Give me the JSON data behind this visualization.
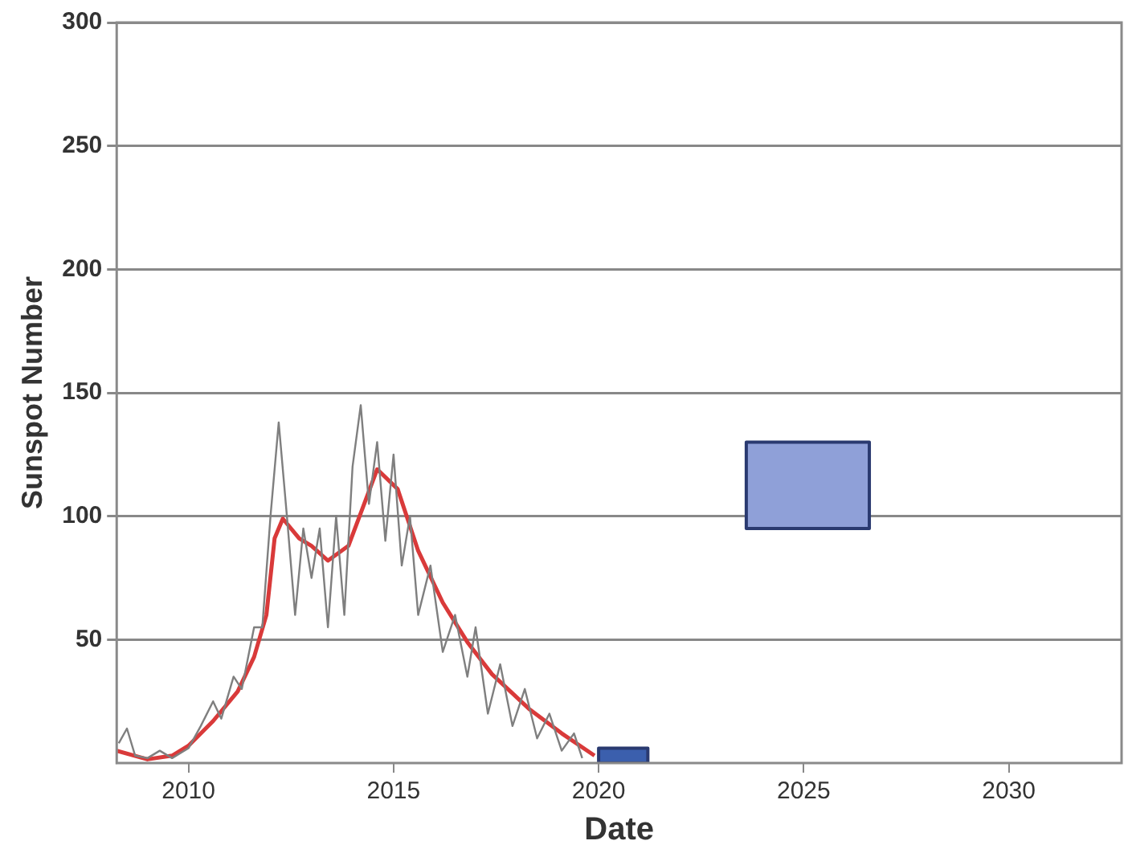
{
  "chart_data": {
    "type": "line",
    "xlabel": "Date",
    "ylabel": "Sunspot Number",
    "xlim": [
      2008.25,
      2032.75
    ],
    "xticks": [
      2010,
      2015,
      2020,
      2025,
      2030
    ],
    "ylim": [
      0,
      300
    ],
    "yticks": [
      50,
      100,
      150,
      200,
      250,
      300
    ],
    "grid": "y",
    "legend": false,
    "series": [
      {
        "type": "line",
        "color": "#7f7f7f",
        "x": [
          2008.3,
          2008.5,
          2008.7,
          2009.0,
          2009.3,
          2009.6,
          2010.0,
          2010.3,
          2010.6,
          2010.8,
          2011.1,
          2011.3,
          2011.6,
          2011.8,
          2012.0,
          2012.2,
          2012.4,
          2012.6,
          2012.8,
          2013.0,
          2013.2,
          2013.4,
          2013.6,
          2013.8,
          2014.0,
          2014.2,
          2014.4,
          2014.6,
          2014.8,
          2015.0,
          2015.2,
          2015.4,
          2015.6,
          2015.9,
          2016.2,
          2016.5,
          2016.8,
          2017.0,
          2017.3,
          2017.6,
          2017.9,
          2018.2,
          2018.5,
          2018.8,
          2019.1,
          2019.4,
          2019.6
        ],
        "values": [
          8,
          14,
          3,
          2,
          5,
          2,
          6,
          15,
          25,
          18,
          35,
          30,
          55,
          55,
          100,
          138,
          100,
          60,
          95,
          75,
          95,
          55,
          100,
          60,
          120,
          145,
          105,
          130,
          90,
          125,
          80,
          100,
          60,
          80,
          45,
          60,
          35,
          55,
          20,
          40,
          15,
          30,
          10,
          20,
          5,
          12,
          2
        ]
      },
      {
        "type": "line",
        "color": "#d93a3a",
        "x": [
          2008.25,
          2009.0,
          2009.6,
          2010.0,
          2010.6,
          2011.2,
          2011.6,
          2011.9,
          2012.1,
          2012.3,
          2012.7,
          2013.0,
          2013.4,
          2013.9,
          2014.6,
          2015.1,
          2015.6,
          2016.2,
          2016.8,
          2017.4,
          2018.3,
          2019.1,
          2019.9
        ],
        "values": [
          5,
          1.5,
          3,
          7,
          17,
          29,
          43,
          60,
          91,
          99,
          91,
          88,
          82,
          88,
          119,
          111,
          86,
          65,
          49,
          36,
          22,
          12,
          3
        ]
      },
      {
        "type": "area",
        "color": "#3b5fad",
        "x": [
          2020.0,
          2021.2,
          2021.2,
          2020.0,
          2020.0
        ],
        "values": [
          0,
          0,
          6,
          6,
          0
        ]
      },
      {
        "type": "area",
        "color": "#8fa0d8",
        "x": [
          2023.6,
          2026.6,
          2026.6,
          2023.6,
          2023.6
        ],
        "values": [
          95,
          95,
          130,
          130,
          95
        ]
      }
    ]
  }
}
